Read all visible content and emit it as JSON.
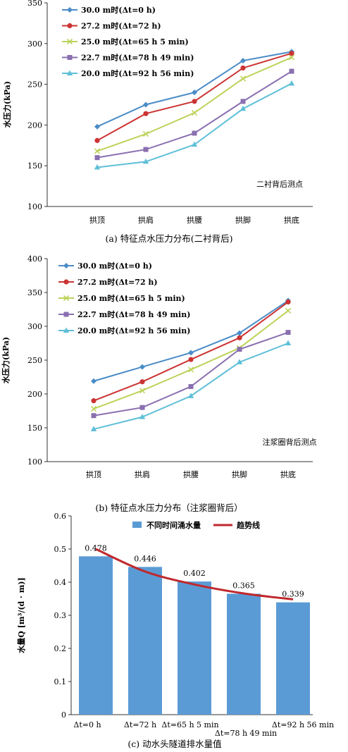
{
  "chart_data": [
    {
      "type": "line",
      "title": "",
      "ylabel": "水压力(kPa)",
      "annotation": "二衬背后测点",
      "caption": "(a) 特征点水压力分布(二衬背后)",
      "ylim": [
        100,
        350
      ],
      "yticks": [
        "100",
        "150",
        "200",
        "250",
        "300",
        "350"
      ],
      "categories": [
        "拱顶",
        "拱肩",
        "拱腰",
        "拱脚",
        "拱底"
      ],
      "legend_position": "top-left",
      "series": [
        {
          "name": "30.0 m时(Δt=0 h)",
          "color": "#4a8cc7",
          "marker": "diamond",
          "values": [
            198,
            225,
            240,
            279,
            290
          ]
        },
        {
          "name": "27.2 m时(Δt=72 h)",
          "color": "#cc3333",
          "marker": "circle",
          "values": [
            181,
            214,
            229,
            270,
            288
          ]
        },
        {
          "name": "25.0 m时(Δt=65 h 5 min)",
          "color": "#bcd35a",
          "marker": "x",
          "values": [
            168,
            189,
            215,
            257,
            283
          ]
        },
        {
          "name": "22.7 m时(Δt=78 h 49 min)",
          "color": "#8a6fb0",
          "marker": "square",
          "values": [
            160,
            170,
            190,
            229,
            266
          ]
        },
        {
          "name": "20.0 m时(Δt=92 h 56 min)",
          "color": "#5fbfd8",
          "marker": "triangle",
          "values": [
            148,
            155,
            176,
            220,
            251
          ]
        }
      ]
    },
    {
      "type": "line",
      "title": "",
      "ylabel": "水压力(kPa)",
      "annotation": "注浆圈背后测点",
      "caption": "(b) 特征点水压力分布（注浆圈背后）",
      "ylim": [
        100,
        400
      ],
      "yticks": [
        "100",
        "150",
        "200",
        "250",
        "300",
        "350",
        "400"
      ],
      "categories": [
        "拱顶",
        "拱肩",
        "拱腰",
        "拱脚",
        "拱底"
      ],
      "legend_position": "top-left",
      "series": [
        {
          "name": "30.0 m时(Δt=0 h)",
          "color": "#4a8cc7",
          "marker": "diamond",
          "values": [
            219,
            240,
            261,
            290,
            338
          ]
        },
        {
          "name": "27.2 m时(Δt=72 h)",
          "color": "#cc3333",
          "marker": "circle",
          "values": [
            190,
            218,
            251,
            283,
            336
          ]
        },
        {
          "name": "25.0 m时(Δt=65 h 5 min)",
          "color": "#bcd35a",
          "marker": "x",
          "values": [
            178,
            205,
            236,
            268,
            323
          ]
        },
        {
          "name": "22.7 m时(Δt=78 h 49 min)",
          "color": "#8a6fb0",
          "marker": "square",
          "values": [
            168,
            180,
            211,
            266,
            291
          ]
        },
        {
          "name": "20.0 m时(Δt=92 h 56 min)",
          "color": "#5fbfd8",
          "marker": "triangle",
          "values": [
            148,
            166,
            197,
            247,
            275
          ]
        }
      ]
    },
    {
      "type": "bar",
      "title": "",
      "ylabel": "水量Q [m³/(d · m)]",
      "caption": "(c) 动水头隧道排水量值",
      "ylim": [
        0,
        0.6
      ],
      "yticks": [
        "0",
        "0.1",
        "0.2",
        "0.3",
        "0.4",
        "0.5",
        "0.6"
      ],
      "categories": [
        "Δt=0 h",
        "Δt=72 h",
        "Δt=65 h 5 min",
        "Δt=78 h 49 min",
        "Δt=92 h 56 min"
      ],
      "values": [
        0.478,
        0.446,
        0.402,
        0.365,
        0.339
      ],
      "data_labels": [
        "0.478",
        "0.446",
        "0.402",
        "0.365",
        "0.339"
      ],
      "legend_position": "top",
      "legend": [
        {
          "name": "不同时间涌水量",
          "color": "#5b9bd5",
          "kind": "bar"
        },
        {
          "name": "趋势线",
          "color": "#c0282d",
          "kind": "line"
        }
      ],
      "trend_values": [
        0.5,
        0.432,
        0.393,
        0.366,
        0.348
      ]
    }
  ]
}
